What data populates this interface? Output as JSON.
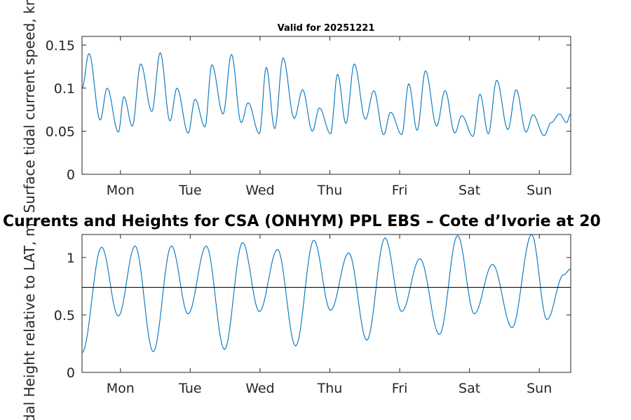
{
  "chart_data": [
    {
      "type": "line",
      "title": "Valid for 20251221",
      "xlabel": "",
      "ylabel": "Surface tidal current speed, kn",
      "x_tick_labels": [
        "Mon",
        "Tue",
        "Wed",
        "Thu",
        "Fri",
        "Sat",
        "Sun"
      ],
      "y_tick_labels": [
        "0",
        "0.05",
        "0.1",
        "0.15"
      ],
      "y_ticks": [
        0,
        0.05,
        0.1,
        0.15
      ],
      "xlim": [
        0,
        7.0
      ],
      "ylim": [
        0,
        0.16
      ],
      "x_tick_values": [
        0.55,
        1.55,
        2.55,
        3.55,
        4.55,
        5.55,
        6.55
      ],
      "series": [
        {
          "name": "current speed",
          "color": "#0072BD",
          "x": [
            0.0,
            0.1,
            0.26,
            0.36,
            0.52,
            0.6,
            0.72,
            0.84,
            1.0,
            1.12,
            1.26,
            1.36,
            1.52,
            1.62,
            1.76,
            1.86,
            2.02,
            2.14,
            2.28,
            2.38,
            2.54,
            2.64,
            2.76,
            2.88,
            3.04,
            3.16,
            3.3,
            3.4,
            3.56,
            3.66,
            3.78,
            3.9,
            4.06,
            4.18,
            4.32,
            4.42,
            4.58,
            4.68,
            4.8,
            4.92,
            5.08,
            5.2,
            5.34,
            5.44,
            5.6,
            5.7,
            5.82,
            5.94,
            6.1,
            6.22,
            6.36,
            6.46,
            6.62,
            6.72,
            6.84,
            6.94,
            7.0
          ],
          "y": [
            0.1,
            0.14,
            0.063,
            0.1,
            0.049,
            0.09,
            0.056,
            0.128,
            0.073,
            0.141,
            0.062,
            0.1,
            0.048,
            0.087,
            0.055,
            0.127,
            0.07,
            0.139,
            0.06,
            0.083,
            0.047,
            0.124,
            0.053,
            0.135,
            0.065,
            0.098,
            0.05,
            0.077,
            0.047,
            0.116,
            0.059,
            0.128,
            0.064,
            0.097,
            0.046,
            0.072,
            0.046,
            0.105,
            0.051,
            0.12,
            0.056,
            0.097,
            0.048,
            0.068,
            0.044,
            0.093,
            0.047,
            0.109,
            0.052,
            0.098,
            0.049,
            0.069,
            0.045,
            0.06,
            0.07,
            0.06,
            0.07
          ]
        }
      ]
    },
    {
      "type": "line",
      "title": "Currents and Heights for CSA (ONHYM) PPL EBS  – Cote d’Ivorie at 20",
      "xlabel": "",
      "ylabel": "Tidal Height relative to LAT, m",
      "x_tick_labels": [
        "Mon",
        "Tue",
        "Wed",
        "Thu",
        "Fri",
        "Sat",
        "Sun"
      ],
      "y_tick_labels": [
        "0",
        "0.5",
        "1"
      ],
      "y_ticks": [
        0,
        0.5,
        1
      ],
      "xlim": [
        0,
        7.0
      ],
      "ylim": [
        0,
        1.2
      ],
      "x_tick_values": [
        0.55,
        1.55,
        2.55,
        3.55,
        4.55,
        5.55,
        6.55
      ],
      "reference_line": 0.74,
      "series": [
        {
          "name": "tidal height",
          "color": "#0072BD",
          "x": [
            0.0,
            0.28,
            0.52,
            0.76,
            1.02,
            1.28,
            1.52,
            1.78,
            2.04,
            2.3,
            2.54,
            2.8,
            3.06,
            3.32,
            3.56,
            3.82,
            4.08,
            4.34,
            4.58,
            4.84,
            5.12,
            5.38,
            5.62,
            5.88,
            6.16,
            6.44,
            6.66,
            6.9,
            7.0
          ],
          "y": [
            0.17,
            1.09,
            0.49,
            1.1,
            0.18,
            1.1,
            0.51,
            1.1,
            0.2,
            1.13,
            0.53,
            1.07,
            0.23,
            1.15,
            0.54,
            1.04,
            0.28,
            1.17,
            0.53,
            0.99,
            0.33,
            1.19,
            0.51,
            0.94,
            0.39,
            1.2,
            0.46,
            0.85,
            0.9
          ]
        }
      ]
    }
  ]
}
